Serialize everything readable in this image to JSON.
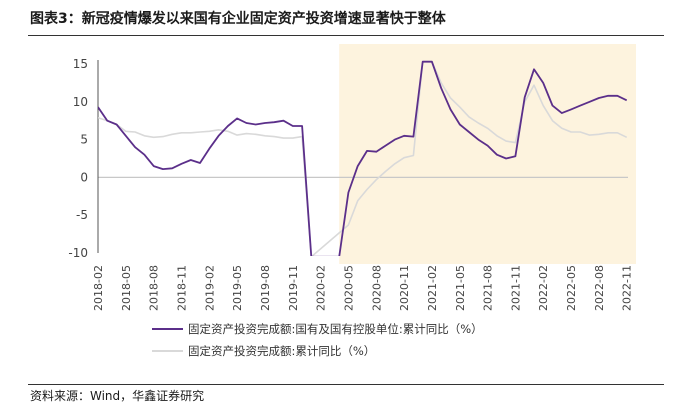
{
  "header": {
    "title": "图表3：新冠疫情爆发以来国有企业固定资产投资增速显著快于整体"
  },
  "footer": {
    "source": "资料来源：Wind，华鑫证券研究"
  },
  "colors": {
    "series_primary": "#5b2f8a",
    "series_secondary": "#d9d9d9",
    "shade": "#fdf3de",
    "zero_line": "#c8c8c8"
  },
  "chart_data": {
    "type": "line",
    "title": "",
    "xlabel": "",
    "ylabel": "",
    "ylim": [
      -10,
      15
    ],
    "yticks": [
      -10,
      -5,
      0,
      5,
      10,
      15
    ],
    "x_tick_labels": [
      "2018-02",
      "2018-05",
      "2018-08",
      "2018-11",
      "2019-02",
      "2019-05",
      "2019-08",
      "2019-11",
      "2020-02",
      "2020-05",
      "2020-08",
      "2020-11",
      "2021-02",
      "2021-05",
      "2021-08",
      "2021-11",
      "2022-02",
      "2022-05",
      "2022-08",
      "2022-11"
    ],
    "shaded_region": [
      "2020-04",
      "2022-12"
    ],
    "legend_position": "bottom",
    "series": [
      {
        "name": "固定资产投资完成额:国有及国有控股单位:累计同比（%）",
        "color": "#5b2f8a",
        "points": [
          [
            "2018-02",
            9.3
          ],
          [
            "2018-03",
            7.5
          ],
          [
            "2018-04",
            7.0
          ],
          [
            "2018-05",
            5.5
          ],
          [
            "2018-06",
            4.0
          ],
          [
            "2018-07",
            3.0
          ],
          [
            "2018-08",
            1.5
          ],
          [
            "2018-09",
            1.1
          ],
          [
            "2018-10",
            1.2
          ],
          [
            "2018-11",
            1.8
          ],
          [
            "2018-12",
            2.3
          ],
          [
            "2019-01",
            1.9
          ],
          [
            "2019-02",
            3.8
          ],
          [
            "2019-03",
            5.5
          ],
          [
            "2019-04",
            6.8
          ],
          [
            "2019-05",
            7.8
          ],
          [
            "2019-06",
            7.2
          ],
          [
            "2019-07",
            7.0
          ],
          [
            "2019-08",
            7.2
          ],
          [
            "2019-09",
            7.3
          ],
          [
            "2019-10",
            7.5
          ],
          [
            "2019-11",
            6.8
          ],
          [
            "2019-12",
            6.8
          ],
          [
            "2020-01",
            -10.5
          ],
          [
            "2020-04",
            -10.5
          ],
          [
            "2020-05",
            -2.0
          ],
          [
            "2020-06",
            1.5
          ],
          [
            "2020-07",
            3.5
          ],
          [
            "2020-08",
            3.4
          ],
          [
            "2020-09",
            4.2
          ],
          [
            "2020-10",
            5.0
          ],
          [
            "2020-11",
            5.5
          ],
          [
            "2020-12",
            5.4
          ],
          [
            "2021-01",
            15.3
          ],
          [
            "2021-02",
            15.3
          ],
          [
            "2021-03",
            11.8
          ],
          [
            "2021-04",
            9.0
          ],
          [
            "2021-05",
            7.0
          ],
          [
            "2021-06",
            6.0
          ],
          [
            "2021-07",
            5.0
          ],
          [
            "2021-08",
            4.2
          ],
          [
            "2021-09",
            3.0
          ],
          [
            "2021-10",
            2.5
          ],
          [
            "2021-11",
            2.8
          ],
          [
            "2021-12",
            10.6
          ],
          [
            "2022-01",
            14.3
          ],
          [
            "2022-02",
            12.5
          ],
          [
            "2022-03",
            9.5
          ],
          [
            "2022-04",
            8.5
          ],
          [
            "2022-05",
            9.0
          ],
          [
            "2022-06",
            9.5
          ],
          [
            "2022-07",
            10.0
          ],
          [
            "2022-08",
            10.5
          ],
          [
            "2022-09",
            10.8
          ],
          [
            "2022-10",
            10.8
          ],
          [
            "2022-11",
            10.2
          ]
        ]
      },
      {
        "name": "固定资产投资完成额:累计同比（%）",
        "color": "#d9d9d9",
        "points": [
          [
            "2018-02",
            7.9
          ],
          [
            "2018-03",
            7.5
          ],
          [
            "2018-04",
            7.0
          ],
          [
            "2018-05",
            6.1
          ],
          [
            "2018-06",
            6.0
          ],
          [
            "2018-07",
            5.5
          ],
          [
            "2018-08",
            5.3
          ],
          [
            "2018-09",
            5.4
          ],
          [
            "2018-10",
            5.7
          ],
          [
            "2018-11",
            5.9
          ],
          [
            "2018-12",
            5.9
          ],
          [
            "2019-01",
            6.0
          ],
          [
            "2019-02",
            6.1
          ],
          [
            "2019-03",
            6.3
          ],
          [
            "2019-04",
            6.1
          ],
          [
            "2019-05",
            5.6
          ],
          [
            "2019-06",
            5.8
          ],
          [
            "2019-07",
            5.7
          ],
          [
            "2019-08",
            5.5
          ],
          [
            "2019-09",
            5.4
          ],
          [
            "2019-10",
            5.2
          ],
          [
            "2019-11",
            5.2
          ],
          [
            "2019-12",
            5.4
          ],
          [
            "2020-01",
            -10.5
          ],
          [
            "2020-05",
            -6.3
          ],
          [
            "2020-06",
            -3.1
          ],
          [
            "2020-07",
            -1.6
          ],
          [
            "2020-08",
            -0.3
          ],
          [
            "2020-09",
            0.8
          ],
          [
            "2020-10",
            1.8
          ],
          [
            "2020-11",
            2.6
          ],
          [
            "2020-12",
            2.9
          ],
          [
            "2021-01",
            15.3
          ],
          [
            "2021-02",
            15.3
          ],
          [
            "2021-03",
            12.5
          ],
          [
            "2021-04",
            10.5
          ],
          [
            "2021-05",
            9.3
          ],
          [
            "2021-06",
            8.0
          ],
          [
            "2021-07",
            7.2
          ],
          [
            "2021-08",
            6.5
          ],
          [
            "2021-09",
            5.5
          ],
          [
            "2021-10",
            4.8
          ],
          [
            "2021-11",
            4.6
          ],
          [
            "2021-12",
            10.0
          ],
          [
            "2022-01",
            12.2
          ],
          [
            "2022-02",
            9.5
          ],
          [
            "2022-03",
            7.5
          ],
          [
            "2022-04",
            6.5
          ],
          [
            "2022-05",
            6.0
          ],
          [
            "2022-06",
            6.0
          ],
          [
            "2022-07",
            5.6
          ],
          [
            "2022-08",
            5.7
          ],
          [
            "2022-09",
            5.9
          ],
          [
            "2022-10",
            5.9
          ],
          [
            "2022-11",
            5.3
          ]
        ]
      }
    ]
  }
}
